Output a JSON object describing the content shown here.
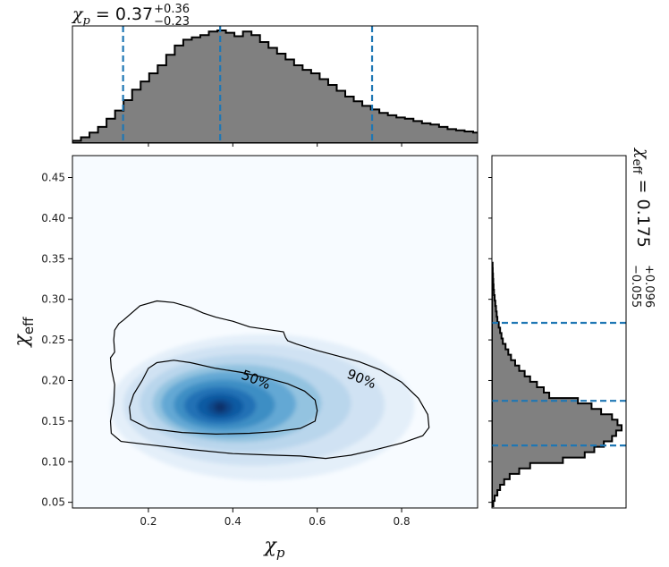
{
  "chart_data": [
    {
      "type": "heatmap",
      "xlabel": "χ_p",
      "ylabel": "χ_eff",
      "xlim": [
        0.02,
        0.98
      ],
      "ylim": [
        0.043,
        0.477
      ],
      "xticks": [
        0.2,
        0.4,
        0.6,
        0.8
      ],
      "xtick_labels": [
        "0.2",
        "0.4",
        "0.6",
        "0.8"
      ],
      "yticks": [
        0.05,
        0.1,
        0.15,
        0.2,
        0.25,
        0.3,
        0.35,
        0.4,
        0.45
      ],
      "ytick_labels": [
        "0.05",
        "0.10",
        "0.15",
        "0.20",
        "0.25",
        "0.30",
        "0.35",
        "0.40",
        "0.45"
      ],
      "colormap": "Blues",
      "density_peak": {
        "x": 0.37,
        "y": 0.167
      },
      "contours": [
        {
          "label": "50%",
          "points": [
            [
              0.22,
              0.222
            ],
            [
              0.26,
              0.225
            ],
            [
              0.3,
              0.222
            ],
            [
              0.36,
              0.215
            ],
            [
              0.42,
              0.21
            ],
            [
              0.48,
              0.203
            ],
            [
              0.53,
              0.196
            ],
            [
              0.57,
              0.187
            ],
            [
              0.595,
              0.176
            ],
            [
              0.6,
              0.163
            ],
            [
              0.595,
              0.15
            ],
            [
              0.56,
              0.141
            ],
            [
              0.5,
              0.137
            ],
            [
              0.44,
              0.135
            ],
            [
              0.36,
              0.134
            ],
            [
              0.28,
              0.136
            ],
            [
              0.2,
              0.141
            ],
            [
              0.158,
              0.152
            ],
            [
              0.155,
              0.167
            ],
            [
              0.165,
              0.183
            ],
            [
              0.185,
              0.2
            ],
            [
              0.2,
              0.215
            ]
          ]
        },
        {
          "label": "90%",
          "points": [
            [
              0.14,
              0.274
            ],
            [
              0.18,
              0.292
            ],
            [
              0.22,
              0.298
            ],
            [
              0.26,
              0.296
            ],
            [
              0.3,
              0.29
            ],
            [
              0.33,
              0.283
            ],
            [
              0.36,
              0.278
            ],
            [
              0.4,
              0.273
            ],
            [
              0.44,
              0.266
            ],
            [
              0.48,
              0.263
            ],
            [
              0.52,
              0.26
            ],
            [
              0.525,
              0.253
            ],
            [
              0.53,
              0.249
            ],
            [
              0.55,
              0.245
            ],
            [
              0.6,
              0.237
            ],
            [
              0.65,
              0.23
            ],
            [
              0.7,
              0.223
            ],
            [
              0.75,
              0.213
            ],
            [
              0.8,
              0.198
            ],
            [
              0.84,
              0.178
            ],
            [
              0.862,
              0.158
            ],
            [
              0.865,
              0.142
            ],
            [
              0.85,
              0.132
            ],
            [
              0.8,
              0.123
            ],
            [
              0.74,
              0.115
            ],
            [
              0.68,
              0.108
            ],
            [
              0.62,
              0.104
            ],
            [
              0.56,
              0.107
            ],
            [
              0.5,
              0.108
            ],
            [
              0.4,
              0.11
            ],
            [
              0.3,
              0.115
            ],
            [
              0.2,
              0.121
            ],
            [
              0.135,
              0.125
            ],
            [
              0.112,
              0.135
            ],
            [
              0.11,
              0.15
            ],
            [
              0.118,
              0.172
            ],
            [
              0.12,
              0.195
            ],
            [
              0.112,
              0.215
            ],
            [
              0.11,
              0.228
            ],
            [
              0.12,
              0.235
            ],
            [
              0.118,
              0.25
            ],
            [
              0.12,
              0.262
            ],
            [
              0.13,
              0.27
            ]
          ]
        }
      ]
    },
    {
      "type": "bar",
      "orientation": "vertical",
      "variable": "χ_p",
      "title": "χ_p = 0.37^{+0.36}_{-0.23}",
      "title_parts": {
        "symbol": "χ",
        "sub": "p",
        "median": "0.37",
        "plus": "+0.36",
        "minus": "−0.23"
      },
      "xlim": [
        0.02,
        0.98
      ],
      "bin_edges_start": 0.02,
      "bin_width": 0.0202,
      "values": [
        0.02,
        0.05,
        0.09,
        0.14,
        0.21,
        0.28,
        0.37,
        0.46,
        0.53,
        0.6,
        0.67,
        0.76,
        0.84,
        0.89,
        0.91,
        0.93,
        0.96,
        0.97,
        0.95,
        0.92,
        0.96,
        0.93,
        0.87,
        0.82,
        0.77,
        0.72,
        0.67,
        0.63,
        0.6,
        0.55,
        0.5,
        0.45,
        0.4,
        0.36,
        0.32,
        0.29,
        0.26,
        0.24,
        0.22,
        0.21,
        0.19,
        0.17,
        0.16,
        0.14,
        0.12,
        0.11,
        0.1,
        0.09,
        0.08,
        0.07
      ],
      "lines": [
        0.14,
        0.37,
        0.73
      ],
      "line_style": "dashed",
      "fill_color": "#808080",
      "line_color": "#1f77b4"
    },
    {
      "type": "bar",
      "orientation": "horizontal",
      "variable": "χ_eff",
      "title": "χ_eff = 0.175^{+0.096}_{-0.055}",
      "title_parts": {
        "symbol": "χ",
        "sub": "eff",
        "median": "0.175",
        "plus": "+0.096",
        "minus": "−0.055"
      },
      "ylim": [
        0.043,
        0.477
      ],
      "bin_edges_start": 0.045,
      "bin_width": 0.00667,
      "values": [
        0.01,
        0.02,
        0.04,
        0.06,
        0.09,
        0.13,
        0.2,
        0.28,
        0.52,
        0.68,
        0.75,
        0.82,
        0.88,
        0.91,
        0.95,
        0.92,
        0.88,
        0.8,
        0.73,
        0.63,
        0.42,
        0.38,
        0.33,
        0.28,
        0.24,
        0.2,
        0.17,
        0.14,
        0.12,
        0.1,
        0.08,
        0.07,
        0.06,
        0.05,
        0.04,
        0.035,
        0.03,
        0.025,
        0.02,
        0.015,
        0.012,
        0.01,
        0.008,
        0.006,
        0.005
      ],
      "lines": [
        0.12,
        0.175,
        0.271
      ],
      "line_style": "dashed",
      "fill_color": "#808080",
      "line_color": "#1f77b4"
    }
  ]
}
